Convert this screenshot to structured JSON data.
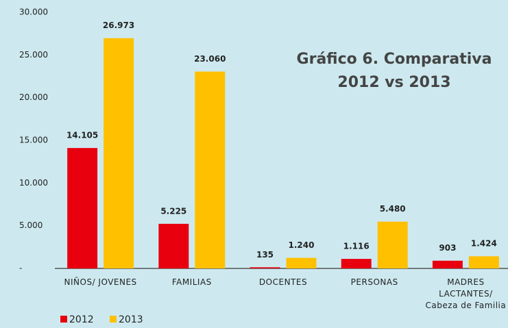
{
  "chart_data": {
    "type": "bar",
    "title": "Gráfico 6. Comparativa 2012 vs 2013",
    "categories": [
      "NIÑOS/ JOVENES",
      "FAMILIAS",
      "DOCENTES",
      "PERSONAS",
      "MADRES LACTANTES/ Cabeza de Familia"
    ],
    "series": [
      {
        "name": "2012",
        "color": "#e8000f",
        "values": [
          14105,
          5225,
          135,
          1116,
          903
        ],
        "value_labels": [
          "14.105",
          "5.225",
          "135",
          "1.116",
          "903"
        ]
      },
      {
        "name": "2013",
        "color": "#ffc000",
        "values": [
          26973,
          23060,
          1240,
          5480,
          1424
        ],
        "value_labels": [
          "26.973",
          "23.060",
          "1.240",
          "5.480",
          "1.424"
        ]
      }
    ],
    "ylim": [
      0,
      30000
    ],
    "yticks": [
      {
        "value": 0,
        "label": "-"
      },
      {
        "value": 5000,
        "label": "5.000"
      },
      {
        "value": 10000,
        "label": "10.000"
      },
      {
        "value": 15000,
        "label": "15.000"
      },
      {
        "value": 20000,
        "label": "20.000"
      },
      {
        "value": 25000,
        "label": "25.000"
      },
      {
        "value": 30000,
        "label": "30.000"
      }
    ],
    "grid": false,
    "legend": "bottom-left"
  }
}
